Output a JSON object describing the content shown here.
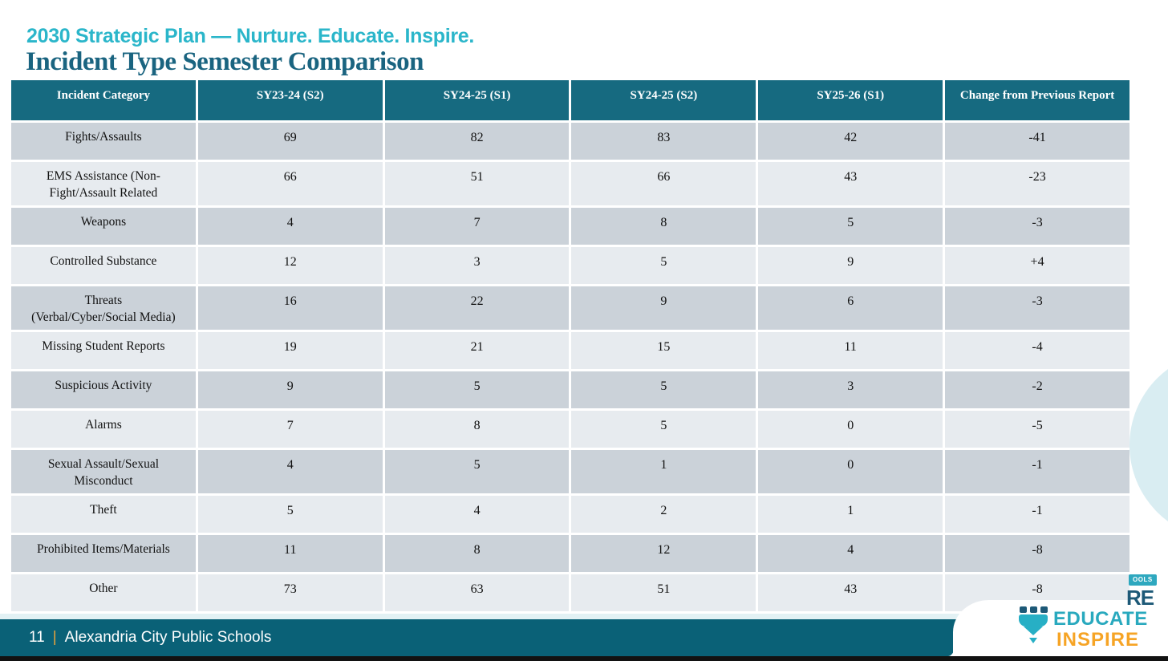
{
  "slide": {
    "eyebrow": "2030 Strategic Plan — Nurture. Educate. Inspire.",
    "title": "Incident Type Semester Comparison"
  },
  "table": {
    "columns": [
      "Incident Category",
      "SY23-24 (S2)",
      "SY24-25 (S1)",
      "SY24-25 (S2)",
      "SY25-26 (S1)",
      "Change from Previous Report"
    ],
    "rows": [
      {
        "category": "Fights/Assaults",
        "values": [
          "69",
          "82",
          "83",
          "42",
          "-41"
        ]
      },
      {
        "category": "EMS Assistance (Non-\nFight/Assault Related",
        "values": [
          "66",
          "51",
          "66",
          "43",
          "-23"
        ]
      },
      {
        "category": "Weapons",
        "values": [
          "4",
          "7",
          "8",
          "5",
          "-3"
        ]
      },
      {
        "category": "Controlled Substance",
        "values": [
          "12",
          "3",
          "5",
          "9",
          "+4"
        ]
      },
      {
        "category": "Threats\n(Verbal/Cyber/Social Media)",
        "values": [
          "16",
          "22",
          "9",
          "6",
          "-3"
        ]
      },
      {
        "category": "Missing Student Reports",
        "values": [
          "19",
          "21",
          "15",
          "11",
          "-4"
        ]
      },
      {
        "category": "Suspicious Activity",
        "values": [
          "9",
          "5",
          "5",
          "3",
          "-2"
        ]
      },
      {
        "category": "Alarms",
        "values": [
          "7",
          "8",
          "5",
          "0",
          "-5"
        ]
      },
      {
        "category": "Sexual Assault/Sexual\nMisconduct",
        "values": [
          "4",
          "5",
          "1",
          "0",
          "-1"
        ]
      },
      {
        "category": "Theft",
        "values": [
          "5",
          "4",
          "2",
          "1",
          "-1"
        ]
      },
      {
        "category": "Prohibited Items/Materials",
        "values": [
          "11",
          "8",
          "12",
          "4",
          "-8"
        ]
      },
      {
        "category": "Other",
        "values": [
          "73",
          "63",
          "51",
          "43",
          "-8"
        ]
      }
    ]
  },
  "footer": {
    "page_number": "11",
    "separator": "|",
    "organization": "Alexandria City Public Schools"
  },
  "logo": {
    "badge_fragment": "OOLS",
    "nurture_fragment": "RE",
    "educate": "EDUCATE",
    "inspire": "INSPIRE"
  },
  "colors": {
    "accent_cyan": "#2BB6CA",
    "title_teal": "#1A6480",
    "header_bg": "#166A80",
    "row_dark": "#CBD2D9",
    "row_light": "#E7EBEF",
    "footer_bar": "#0A6177",
    "footer_separator": "#E8A23C",
    "logo_teal": "#29A9BE",
    "logo_orange": "#F6A425",
    "logo_navy": "#1D5977",
    "arc_fill": "#D9EDF2"
  }
}
